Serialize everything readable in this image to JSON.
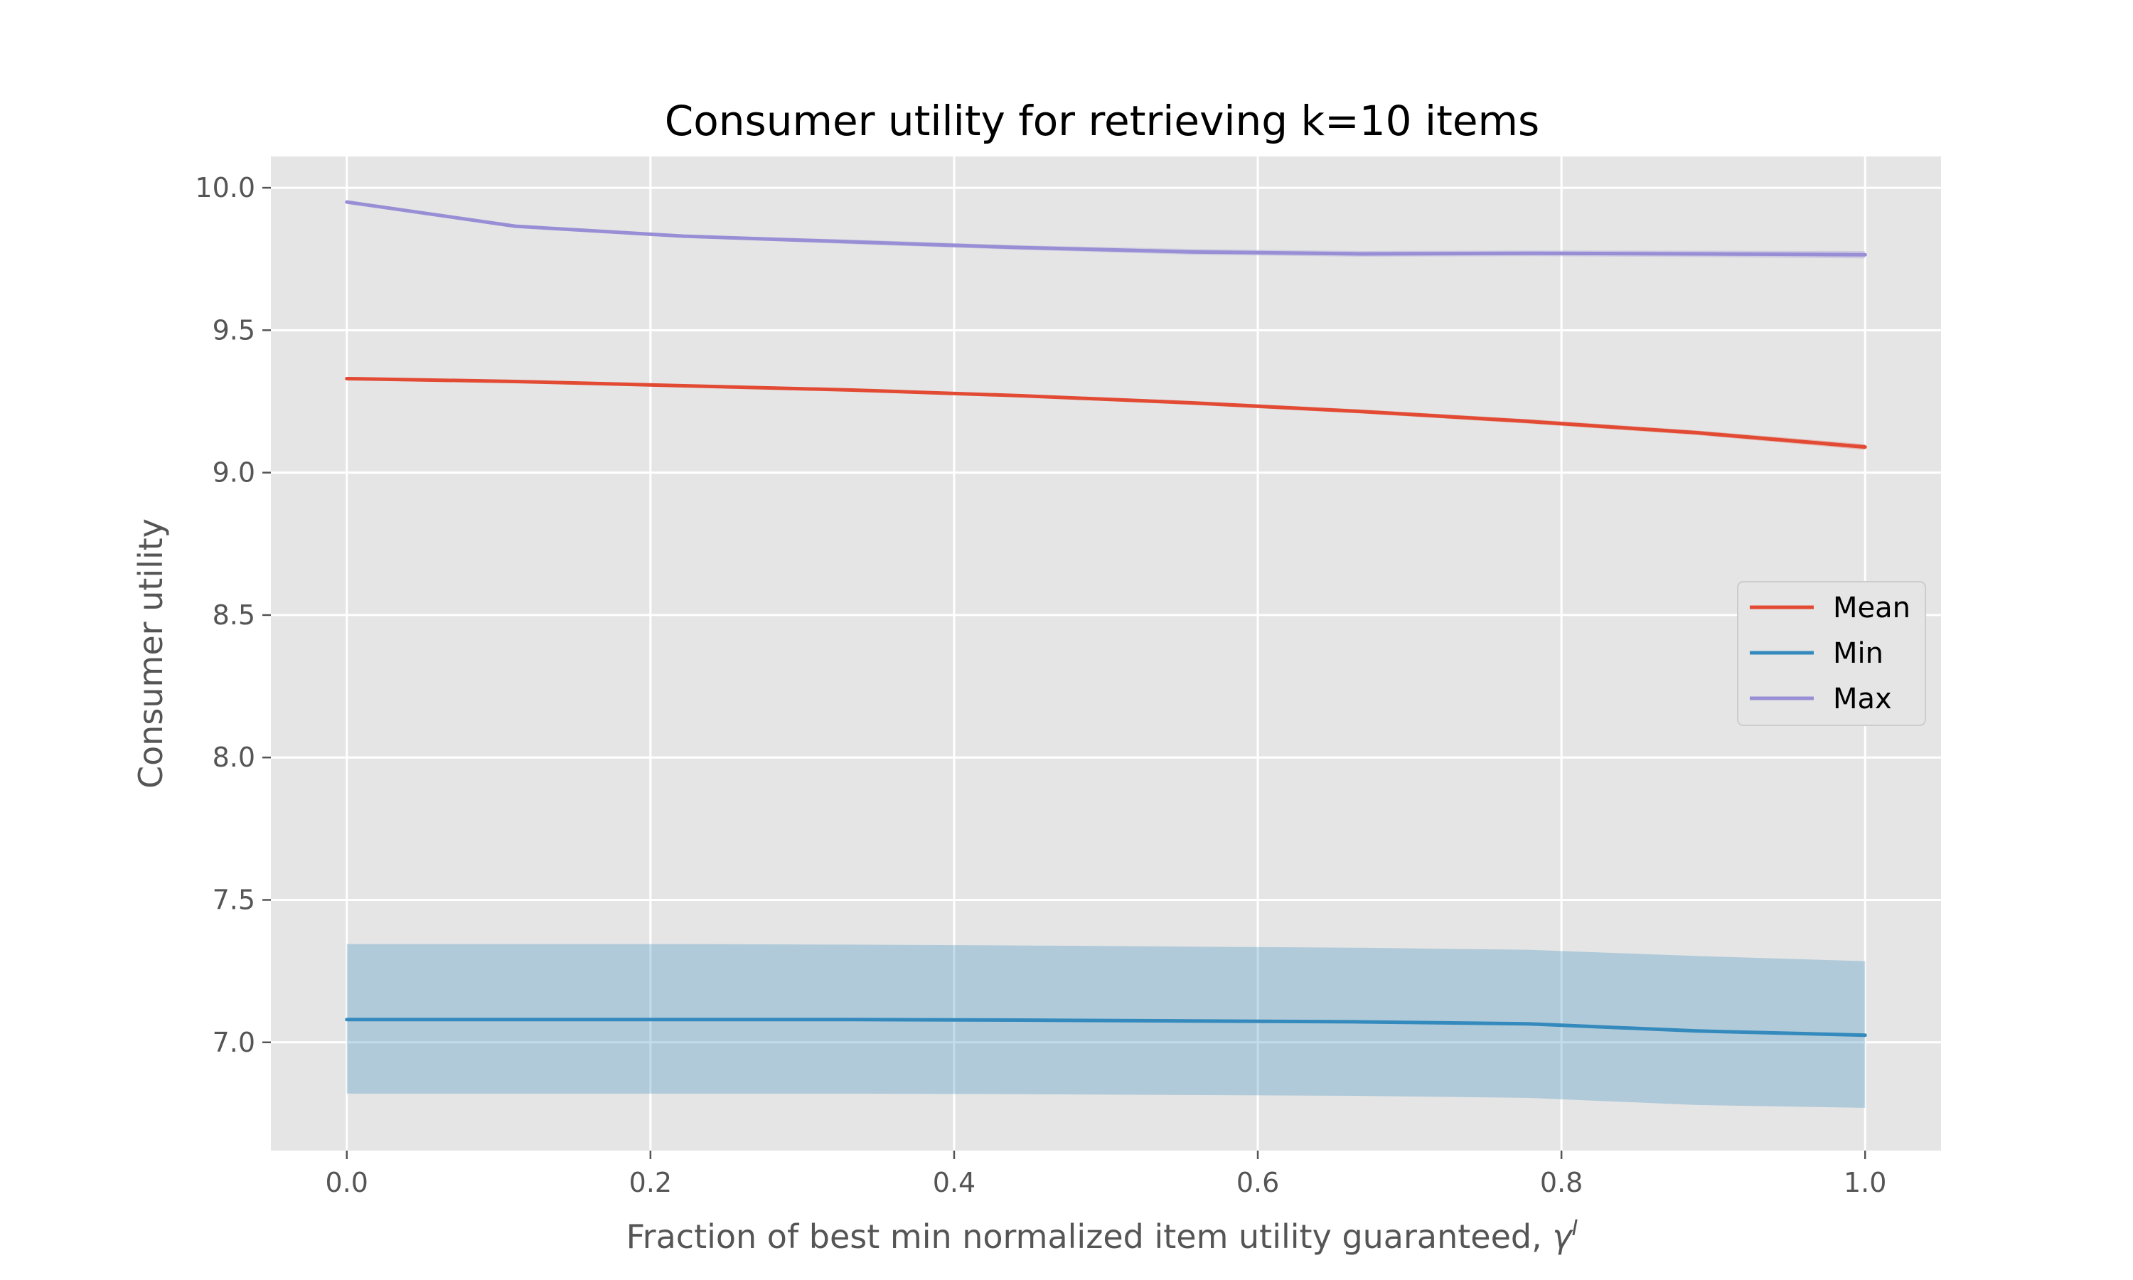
{
  "chart_data": {
    "type": "line",
    "title": "Consumer utility for retrieving k=10 items",
    "xlabel": "Fraction of best min normalized item utility guaranteed, ",
    "xlabel_symbol": "γ",
    "xlabel_superscript": "I",
    "ylabel": "Consumer utility",
    "xlim": [
      -0.05,
      1.05
    ],
    "ylim": [
      6.62,
      10.11
    ],
    "xticks": [
      0.0,
      0.2,
      0.4,
      0.6,
      0.8,
      1.0
    ],
    "xtick_labels": [
      "0.0",
      "0.2",
      "0.4",
      "0.6",
      "0.8",
      "1.0"
    ],
    "yticks": [
      7.0,
      7.5,
      8.0,
      8.5,
      9.0,
      9.5,
      10.0
    ],
    "ytick_labels": [
      "7.0",
      "7.5",
      "8.0",
      "8.5",
      "9.0",
      "9.5",
      "10.0"
    ],
    "grid": true,
    "legend_position": "center-right",
    "x": [
      0.0,
      0.111,
      0.222,
      0.333,
      0.444,
      0.556,
      0.667,
      0.778,
      0.889,
      1.0
    ],
    "series": [
      {
        "name": "Mean",
        "color": "#E24A33",
        "values": [
          9.33,
          9.32,
          9.305,
          9.29,
          9.27,
          9.245,
          9.215,
          9.18,
          9.14,
          9.09
        ],
        "band_lower": [
          9.325,
          9.315,
          9.3,
          9.285,
          9.265,
          9.238,
          9.208,
          9.172,
          9.132,
          9.08
        ],
        "band_upper": [
          9.335,
          9.325,
          9.31,
          9.295,
          9.275,
          9.252,
          9.222,
          9.188,
          9.148,
          9.1
        ]
      },
      {
        "name": "Min",
        "color": "#348ABD",
        "values": [
          7.08,
          7.08,
          7.08,
          7.08,
          7.078,
          7.075,
          7.072,
          7.065,
          7.04,
          7.025
        ],
        "band_lower": [
          6.82,
          6.82,
          6.82,
          6.82,
          6.818,
          6.815,
          6.812,
          6.805,
          6.78,
          6.77
        ],
        "band_upper": [
          7.345,
          7.345,
          7.345,
          7.343,
          7.34,
          7.336,
          7.332,
          7.325,
          7.303,
          7.285
        ]
      },
      {
        "name": "Max",
        "color": "#988ED5",
        "values": [
          9.95,
          9.865,
          9.83,
          9.81,
          9.79,
          9.775,
          9.768,
          9.77,
          9.768,
          9.765
        ],
        "band_lower": [
          9.945,
          9.86,
          9.825,
          9.802,
          9.782,
          9.765,
          9.758,
          9.76,
          9.757,
          9.752
        ],
        "band_upper": [
          9.955,
          9.87,
          9.835,
          9.818,
          9.798,
          9.785,
          9.778,
          9.78,
          9.779,
          9.778
        ]
      }
    ]
  }
}
